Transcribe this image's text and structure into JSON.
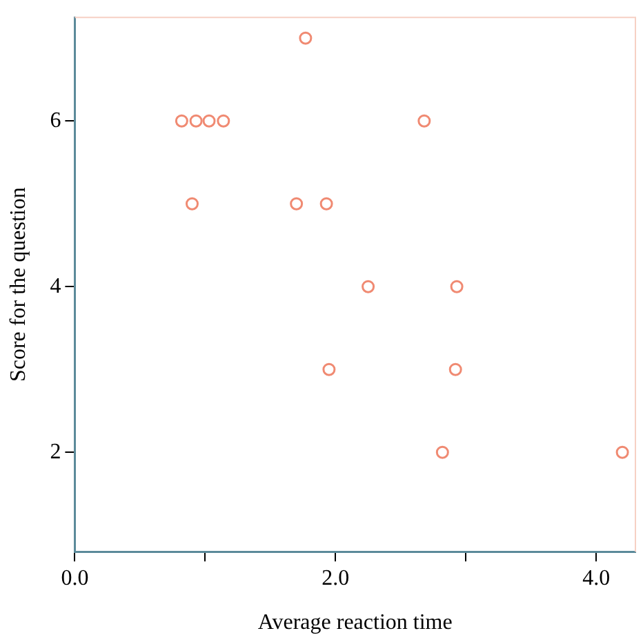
{
  "chart_data": {
    "type": "scatter",
    "xlabel": "Average reaction time",
    "ylabel": "Score for the question",
    "x": [
      1.77,
      0.82,
      0.93,
      1.03,
      1.14,
      2.68,
      0.9,
      1.7,
      1.93,
      2.25,
      2.93,
      1.95,
      2.92,
      2.82,
      4.2
    ],
    "series": [
      {
        "color": "#f08a72",
        "values": [
          7,
          6,
          6,
          6,
          6,
          6,
          5,
          5,
          5,
          4,
          4,
          3,
          3,
          2,
          2
        ]
      }
    ],
    "xlim": [
      0,
      4.3
    ],
    "xticks": [
      {
        "value": 0,
        "label": "0.0"
      },
      {
        "value": 1,
        "label": null
      },
      {
        "value": 2,
        "label": "2.0"
      },
      {
        "value": 3,
        "label": null
      },
      {
        "value": 4,
        "label": "4.0"
      }
    ],
    "ylim": [
      0.8,
      7.25
    ],
    "yticks": [
      2,
      4,
      6
    ],
    "grid": false,
    "legend": false,
    "marker": "circle"
  }
}
